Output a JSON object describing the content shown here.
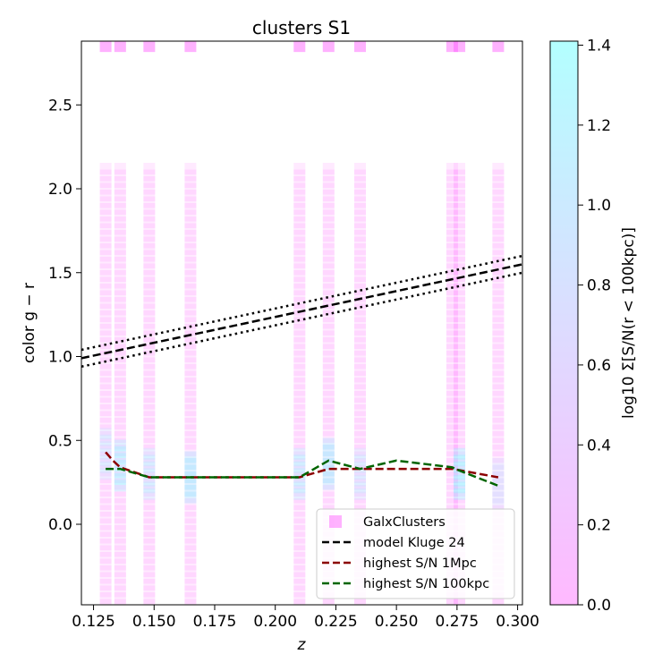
{
  "chart_data": {
    "type": "scatter",
    "title": "clusters S1",
    "xlabel": "z",
    "ylabel": "color g − r",
    "xlim": [
      0.12,
      0.302
    ],
    "ylim": [
      -0.48,
      2.88
    ],
    "xticks": [
      0.125,
      0.15,
      0.175,
      0.2,
      0.225,
      0.25,
      0.275,
      0.3
    ],
    "xtick_labels": [
      "0.125",
      "0.150",
      "0.175",
      "0.200",
      "0.225",
      "0.250",
      "0.275",
      "0.300"
    ],
    "yticks": [
      0.0,
      0.5,
      1.0,
      1.5,
      2.0,
      2.5
    ],
    "ytick_labels": [
      "0.0",
      "0.5",
      "1.0",
      "1.5",
      "2.0",
      "2.5"
    ],
    "grid": false,
    "legend_position": "lower-right",
    "colorbar": {
      "label": "log10 Σ[S/N(r < 100kpc)]",
      "range": [
        0.0,
        1.41
      ],
      "ticks": [
        0.0,
        0.2,
        0.4,
        0.6,
        0.8,
        1.0,
        1.2,
        1.4
      ],
      "tick_labels": [
        "0.0",
        "0.2",
        "0.4",
        "0.6",
        "0.8",
        "1.0",
        "1.2",
        "1.4"
      ],
      "color_low": "#ff80ff",
      "color_high": "#80ffff"
    },
    "clusters": {
      "name": "GalxClusters",
      "z": [
        0.13,
        0.136,
        0.148,
        0.165,
        0.21,
        0.222,
        0.235,
        0.273,
        0.276,
        0.292
      ],
      "color_top": 2.85,
      "color_column_min": -0.48,
      "color_column_max": 2.13,
      "color_step": 0.04,
      "cyan_points": [
        {
          "z": 0.13,
          "color": 0.42,
          "level": 0.6
        },
        {
          "z": 0.136,
          "color": 0.35,
          "level": 1.1
        },
        {
          "z": 0.148,
          "color": 0.3,
          "level": 0.8
        },
        {
          "z": 0.165,
          "color": 0.28,
          "level": 1.2
        },
        {
          "z": 0.21,
          "color": 0.3,
          "level": 0.9
        },
        {
          "z": 0.222,
          "color": 0.36,
          "level": 1.1
        },
        {
          "z": 0.235,
          "color": 0.3,
          "level": 0.6
        },
        {
          "z": 0.276,
          "color": 0.3,
          "level": 1.3
        },
        {
          "z": 0.292,
          "color": 0.24,
          "level": 0.5
        }
      ]
    },
    "series": [
      {
        "name": "model Kluge 24",
        "style": "dashed",
        "color": "#000000",
        "x": [
          0.12,
          0.302
        ],
        "y": [
          0.99,
          1.55
        ]
      },
      {
        "name": "",
        "style": "dotted",
        "color": "#000000",
        "x": [
          0.12,
          0.302
        ],
        "y": [
          1.04,
          1.6
        ]
      },
      {
        "name": "",
        "style": "dotted",
        "color": "#000000",
        "x": [
          0.12,
          0.302
        ],
        "y": [
          0.94,
          1.5
        ]
      },
      {
        "name": "highest S/N 1Mpc",
        "style": "dashed",
        "color": "#8b0000",
        "x": [
          0.13,
          0.133,
          0.136,
          0.148,
          0.165,
          0.21,
          0.222,
          0.235,
          0.25,
          0.273,
          0.292
        ],
        "y": [
          0.43,
          0.38,
          0.34,
          0.28,
          0.28,
          0.28,
          0.33,
          0.33,
          0.33,
          0.33,
          0.28
        ]
      },
      {
        "name": "highest S/N 100kpc",
        "style": "dashed",
        "color": "#006400",
        "x": [
          0.13,
          0.136,
          0.148,
          0.165,
          0.21,
          0.222,
          0.235,
          0.25,
          0.273,
          0.276,
          0.292
        ],
        "y": [
          0.33,
          0.33,
          0.28,
          0.28,
          0.28,
          0.38,
          0.33,
          0.38,
          0.34,
          0.32,
          0.23
        ]
      }
    ]
  }
}
